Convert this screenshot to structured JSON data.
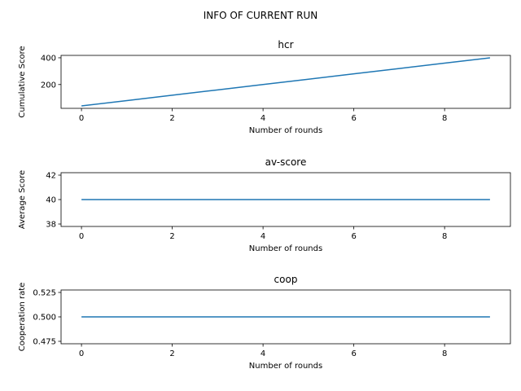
{
  "figure": {
    "suptitle": "INFO OF CURRENT RUN"
  },
  "chart_data": [
    {
      "type": "line",
      "title": "hcr",
      "xlabel": "Number of rounds",
      "ylabel": "Cumulative Score",
      "xlim": [
        -0.45,
        9.45
      ],
      "ylim": [
        22,
        418
      ],
      "xticks": [
        0,
        2,
        4,
        6,
        8
      ],
      "yticks": [
        200,
        400
      ],
      "series": [
        {
          "color": "#1f77b4",
          "x": [
            0,
            1,
            2,
            3,
            4,
            5,
            6,
            7,
            8,
            9
          ],
          "y": [
            40,
            80,
            120,
            160,
            200,
            240,
            280,
            320,
            360,
            400
          ]
        }
      ]
    },
    {
      "type": "line",
      "title": "av-score",
      "xlabel": "Number of rounds",
      "ylabel": "Average Score",
      "xlim": [
        -0.45,
        9.45
      ],
      "ylim": [
        37.8,
        42.2
      ],
      "xticks": [
        0,
        2,
        4,
        6,
        8
      ],
      "yticks": [
        38,
        40,
        42
      ],
      "series": [
        {
          "color": "#1f77b4",
          "x": [
            0,
            1,
            2,
            3,
            4,
            5,
            6,
            7,
            8,
            9
          ],
          "y": [
            40,
            40,
            40,
            40,
            40,
            40,
            40,
            40,
            40,
            40
          ]
        }
      ]
    },
    {
      "type": "line",
      "title": "coop",
      "xlabel": "Number of rounds",
      "ylabel": "Cooperation rate",
      "xlim": [
        -0.45,
        9.45
      ],
      "ylim": [
        0.4725,
        0.5275
      ],
      "xticks": [
        0,
        2,
        4,
        6,
        8
      ],
      "yticks": [
        0.475,
        0.5,
        0.525
      ],
      "ytick_labels": [
        "0.475",
        "0.500",
        "0.525"
      ],
      "series": [
        {
          "color": "#1f77b4",
          "x": [
            0,
            1,
            2,
            3,
            4,
            5,
            6,
            7,
            8,
            9
          ],
          "y": [
            0.5,
            0.5,
            0.5,
            0.5,
            0.5,
            0.5,
            0.5,
            0.5,
            0.5,
            0.5
          ]
        }
      ]
    }
  ]
}
